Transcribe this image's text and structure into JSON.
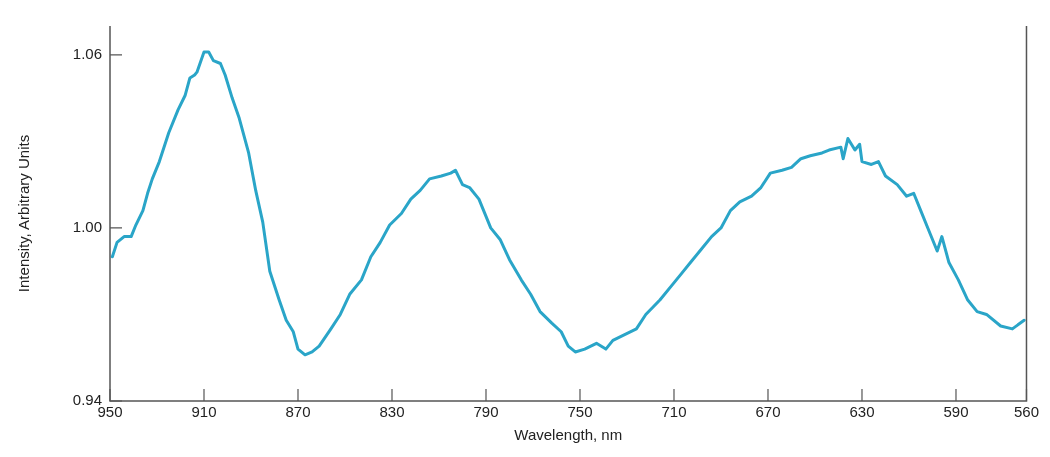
{
  "chart_data": {
    "type": "line",
    "xlabel": "Wavelength, nm",
    "ylabel": "Intensity, Arbitrary Units",
    "xlim": [
      950,
      560
    ],
    "xticks": [
      950,
      910,
      870,
      830,
      790,
      750,
      710,
      670,
      630,
      590,
      560
    ],
    "ylim": [
      0.94,
      1.07
    ],
    "yticks": [
      {
        "value": 0.94,
        "label": "0.94"
      },
      {
        "value": 1.0,
        "label": "1.00"
      },
      {
        "value": 1.06,
        "label": "1.06"
      }
    ],
    "grid": false,
    "legend": false,
    "marker": "none",
    "line_style": "solid",
    "series": [
      {
        "color": "#2aa5c8",
        "x": [
          949,
          947,
          944,
          941,
          939,
          936,
          934,
          932,
          929,
          925,
          921,
          918,
          916,
          914,
          913,
          910,
          908,
          906,
          903,
          901,
          898,
          895,
          891,
          888,
          885,
          882,
          878,
          875,
          872,
          870,
          867,
          864,
          861,
          856,
          852,
          848,
          843,
          839,
          835,
          831,
          826,
          822,
          818,
          814,
          809,
          805,
          803,
          800,
          797,
          793,
          788,
          784,
          780,
          775,
          771,
          767,
          762,
          758,
          755,
          752,
          748,
          743,
          739,
          736,
          731,
          726,
          722,
          716,
          711,
          707,
          703,
          699,
          694,
          690,
          686,
          682,
          677,
          673,
          669,
          664,
          660,
          656,
          652,
          647,
          644,
          639,
          638,
          636,
          633,
          631,
          630,
          626,
          623,
          620,
          615,
          611,
          608,
          605,
          601,
          598,
          596,
          593,
          589,
          585,
          581,
          577,
          571,
          566,
          561
        ],
        "values": [
          0.99,
          0.995,
          0.997,
          0.997,
          1.001,
          1.006,
          1.012,
          1.017,
          1.023,
          1.033,
          1.041,
          1.046,
          1.052,
          1.053,
          1.054,
          1.061,
          1.061,
          1.058,
          1.057,
          1.053,
          1.045,
          1.038,
          1.026,
          1.013,
          1.002,
          0.985,
          0.975,
          0.968,
          0.964,
          0.958,
          0.956,
          0.957,
          0.959,
          0.965,
          0.97,
          0.977,
          0.982,
          0.99,
          0.995,
          1.001,
          1.005,
          1.01,
          1.013,
          1.017,
          1.018,
          1.019,
          1.02,
          1.015,
          1.014,
          1.01,
          1.0,
          0.996,
          0.989,
          0.982,
          0.977,
          0.971,
          0.967,
          0.964,
          0.959,
          0.957,
          0.958,
          0.96,
          0.958,
          0.961,
          0.963,
          0.965,
          0.97,
          0.975,
          0.98,
          0.984,
          0.988,
          0.992,
          0.997,
          1.0,
          1.006,
          1.009,
          1.011,
          1.014,
          1.019,
          1.02,
          1.021,
          1.024,
          1.025,
          1.026,
          1.027,
          1.028,
          1.024,
          1.031,
          1.027,
          1.029,
          1.023,
          1.022,
          1.023,
          1.018,
          1.015,
          1.011,
          1.012,
          1.006,
          0.998,
          0.992,
          0.997,
          0.988,
          0.982,
          0.975,
          0.971,
          0.97,
          0.966,
          0.965,
          0.968
        ]
      }
    ]
  }
}
